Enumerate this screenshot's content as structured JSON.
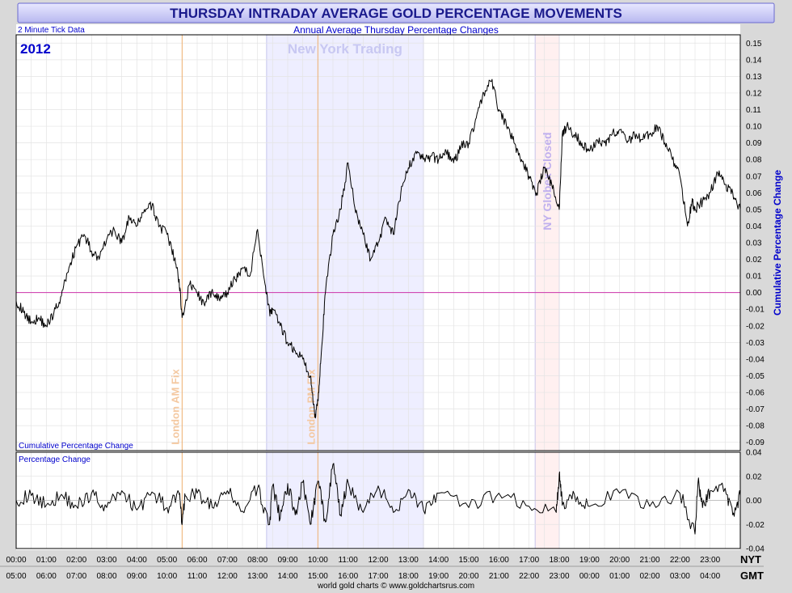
{
  "header": {
    "title": "THURSDAY INTRADAY AVERAGE GOLD PERCENTAGE MOVEMENTS",
    "subtitle": "Annual Average Thursday Percentage Changes",
    "tick_note": "2 Minute Tick Data",
    "year": "2012"
  },
  "footer": {
    "credit": "world gold charts © www.goldchartsrus.com",
    "nyt_label": "NYT",
    "gmt_label": "GMT"
  },
  "colors": {
    "title_text": "#1a1a8c",
    "frame_blue": "#4a4aff",
    "label_blue": "#0000cc",
    "zero_line": "#cc33aa",
    "ny_band": "#eeeeff",
    "globex_band": "#fff0f0",
    "fix_line": "#f0b070",
    "series_line": "#000000"
  },
  "chart_data": [
    {
      "type": "line",
      "panel": "upper",
      "panel_label": "Cumulative Percentage Change",
      "ylabel": "Cumulative Percentage Change",
      "ylim": [
        -0.095,
        0.155
      ],
      "y_ticks": [
        0.15,
        0.14,
        0.13,
        0.12,
        0.11,
        0.1,
        0.09,
        0.08,
        0.07,
        0.06,
        0.05,
        0.04,
        0.03,
        0.02,
        0.01,
        0.0,
        -0.01,
        -0.02,
        -0.03,
        -0.04,
        -0.05,
        -0.06,
        -0.07,
        -0.08,
        -0.09
      ],
      "xlim": [
        0,
        24
      ],
      "x_unit": "hours NYT",
      "reference_line": 0,
      "annotations": [
        {
          "text": "New York Trading",
          "kind": "band",
          "from": 8.3,
          "to": 13.5
        },
        {
          "text": "NY Globex Closed",
          "kind": "band",
          "from": 17.2,
          "to": 18.0
        },
        {
          "text": "London AM Fix",
          "kind": "line",
          "at": 5.5
        },
        {
          "text": "London PM Fix",
          "kind": "line",
          "at": 10.0
        }
      ],
      "series": [
        {
          "x": [
            0.0,
            0.25,
            0.5,
            0.75,
            1.0,
            1.25,
            1.5,
            1.75,
            2.0,
            2.25,
            2.5,
            2.75,
            3.0,
            3.25,
            3.5,
            3.75,
            4.0,
            4.25,
            4.5,
            4.75,
            5.0,
            5.25,
            5.4,
            5.5,
            5.75,
            6.0,
            6.25,
            6.5,
            6.75,
            7.0,
            7.25,
            7.5,
            7.75,
            8.0,
            8.25,
            8.4,
            8.5,
            8.75,
            9.0,
            9.25,
            9.5,
            9.75,
            9.9,
            10.0,
            10.1,
            10.25,
            10.5,
            10.75,
            11.0,
            11.25,
            11.5,
            11.75,
            12.0,
            12.25,
            12.5,
            12.75,
            13.0,
            13.25,
            13.5,
            13.75,
            14.0,
            14.25,
            14.5,
            14.75,
            15.0,
            15.25,
            15.5,
            15.75,
            16.0,
            16.25,
            16.5,
            16.75,
            17.0,
            17.25,
            17.5,
            17.75,
            18.0,
            18.1,
            18.25,
            18.5,
            18.75,
            19.0,
            19.25,
            19.5,
            19.75,
            20.0,
            20.25,
            20.5,
            20.75,
            21.0,
            21.25,
            21.5,
            21.75,
            22.0,
            22.25,
            22.4,
            22.5,
            22.75,
            23.0,
            23.25,
            23.5,
            23.75,
            24.0
          ],
          "y": [
            -0.005,
            -0.012,
            -0.018,
            -0.015,
            -0.02,
            -0.012,
            -0.002,
            0.015,
            0.028,
            0.035,
            0.025,
            0.02,
            0.032,
            0.038,
            0.03,
            0.045,
            0.04,
            0.05,
            0.052,
            0.04,
            0.035,
            0.02,
            0.008,
            -0.015,
            0.005,
            0.0,
            -0.008,
            0.002,
            -0.005,
            0.0,
            0.008,
            0.015,
            0.01,
            0.038,
            0.005,
            -0.012,
            -0.01,
            -0.02,
            -0.03,
            -0.035,
            -0.04,
            -0.05,
            -0.075,
            -0.065,
            -0.04,
            0.0,
            0.035,
            0.05,
            0.078,
            0.048,
            0.035,
            0.02,
            0.03,
            0.045,
            0.035,
            0.06,
            0.075,
            0.085,
            0.08,
            0.082,
            0.08,
            0.085,
            0.078,
            0.088,
            0.09,
            0.105,
            0.12,
            0.127,
            0.11,
            0.1,
            0.09,
            0.08,
            0.07,
            0.06,
            0.075,
            0.065,
            0.05,
            0.095,
            0.1,
            0.095,
            0.09,
            0.085,
            0.092,
            0.09,
            0.095,
            0.098,
            0.09,
            0.095,
            0.092,
            0.095,
            0.1,
            0.09,
            0.08,
            0.07,
            0.04,
            0.055,
            0.05,
            0.055,
            0.06,
            0.072,
            0.065,
            0.06,
            0.05
          ]
        }
      ]
    },
    {
      "type": "line",
      "panel": "lower",
      "panel_label": "Percentage Change",
      "ylim": [
        -0.04,
        0.04
      ],
      "y_ticks": [
        0.04,
        0.02,
        0.0,
        -0.02,
        -0.04
      ],
      "xlim": [
        0,
        24
      ],
      "reference_line": 0,
      "series": [
        {
          "x": [
            0.0,
            0.5,
            1.0,
            1.5,
            2.0,
            2.5,
            3.0,
            3.5,
            4.0,
            4.5,
            5.0,
            5.4,
            5.5,
            5.6,
            6.0,
            6.5,
            7.0,
            7.5,
            8.0,
            8.4,
            8.5,
            8.75,
            9.0,
            9.25,
            9.5,
            9.75,
            10.0,
            10.25,
            10.5,
            10.75,
            11.0,
            11.5,
            12.0,
            12.5,
            13.0,
            13.5,
            14.0,
            15.0,
            16.0,
            17.0,
            17.9,
            18.0,
            18.1,
            18.5,
            19.0,
            20.0,
            21.0,
            22.0,
            22.5,
            22.6,
            22.75,
            23.0,
            23.5,
            23.75,
            24.0
          ],
          "y": [
            0.0,
            0.004,
            -0.004,
            0.005,
            -0.005,
            0.006,
            -0.006,
            0.008,
            -0.008,
            0.007,
            -0.006,
            0.006,
            -0.02,
            0.004,
            0.006,
            -0.006,
            0.008,
            -0.009,
            0.01,
            -0.02,
            0.012,
            -0.015,
            0.014,
            -0.012,
            0.015,
            -0.02,
            0.016,
            -0.018,
            0.03,
            -0.012,
            0.015,
            -0.01,
            0.012,
            -0.01,
            0.009,
            -0.008,
            0.006,
            -0.006,
            0.006,
            -0.005,
            -0.01,
            0.022,
            -0.004,
            0.005,
            -0.005,
            0.006,
            -0.005,
            0.006,
            -0.028,
            0.015,
            -0.006,
            0.008,
            0.01,
            -0.012,
            0.004
          ]
        }
      ]
    }
  ],
  "x_axis": {
    "nyt_ticks": [
      "00:00",
      "01:00",
      "02:00",
      "03:00",
      "04:00",
      "05:00",
      "06:00",
      "07:00",
      "08:00",
      "09:00",
      "10:00",
      "11:00",
      "12:00",
      "13:00",
      "14:00",
      "15:00",
      "16:00",
      "17:00",
      "18:00",
      "19:00",
      "20:00",
      "21:00",
      "22:00",
      "23:00"
    ],
    "gmt_ticks": [
      "05:00",
      "06:00",
      "07:00",
      "08:00",
      "09:00",
      "10:00",
      "11:00",
      "12:00",
      "13:00",
      "14:00",
      "15:00",
      "16:00",
      "17:00",
      "18:00",
      "19:00",
      "20:00",
      "21:00",
      "22:00",
      "23:00",
      "00:00",
      "01:00",
      "02:00",
      "03:00",
      "04:00"
    ]
  }
}
